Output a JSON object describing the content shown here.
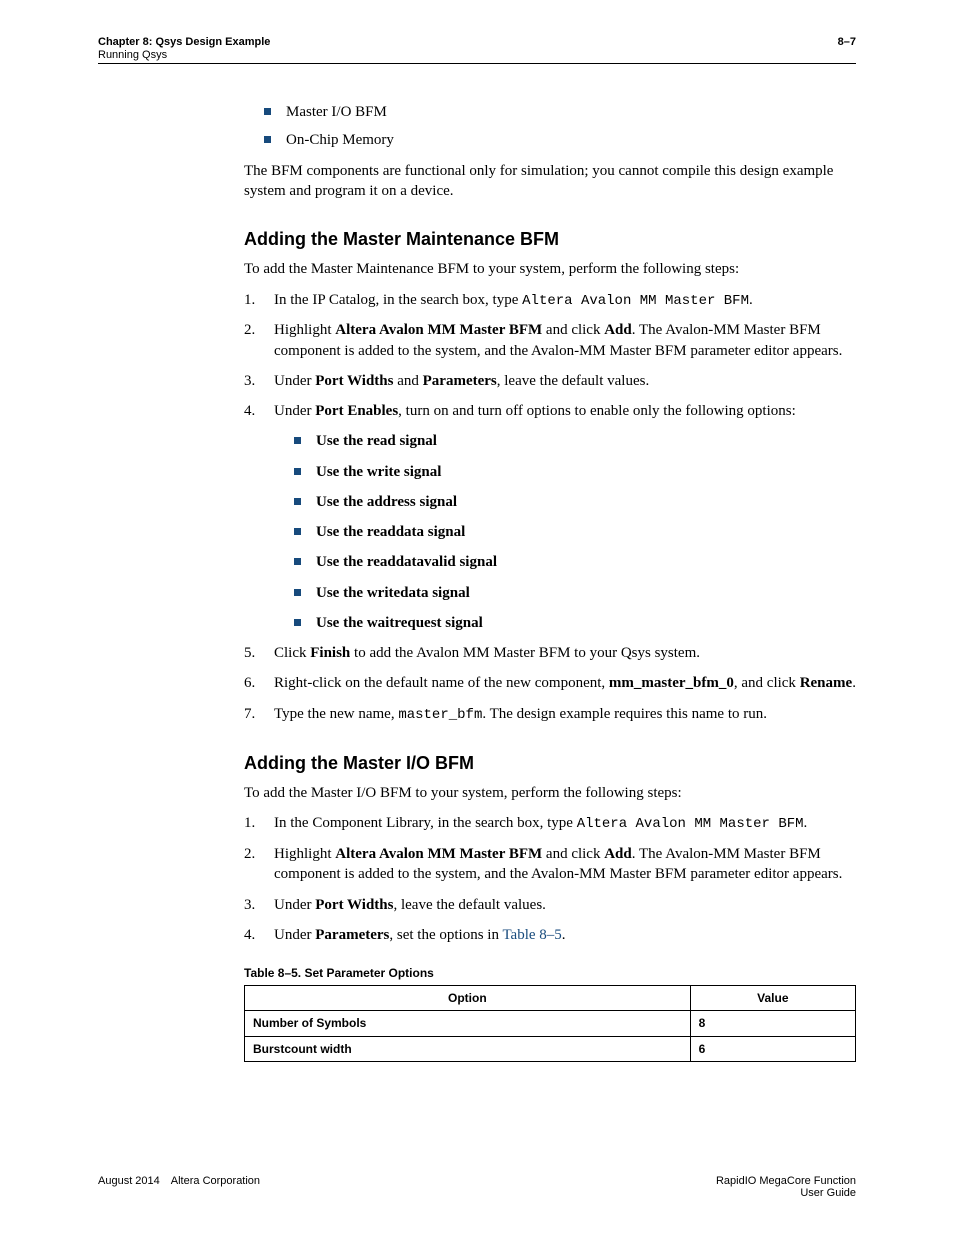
{
  "header": {
    "chapter": "Chapter 8: Qsys Design Example",
    "section": "Running Qsys",
    "pagenum": "8–7"
  },
  "intro": {
    "bullets": [
      "Master I/O BFM",
      "On-Chip Memory"
    ],
    "para": "The BFM components are functional only for simulation; you cannot compile this design example system and program it on a device."
  },
  "sec1": {
    "title": "Adding the Master Maintenance BFM",
    "lead": "To add the Master Maintenance BFM to your system, perform the following steps:",
    "step1_a": "In the IP Catalog, in the search box, type ",
    "step1_code": "Altera Avalon MM Master BFM",
    "step1_b": ".",
    "step2_a": "Highlight ",
    "step2_b": "Altera Avalon MM Master BFM",
    "step2_c": " and click ",
    "step2_d": "Add",
    "step2_e": ". The Avalon-MM Master BFM component is added to the system, and the Avalon-MM Master BFM parameter editor appears.",
    "step3_a": "Under ",
    "step3_b": "Port Widths",
    "step3_c": " and ",
    "step3_d": "Parameters",
    "step3_e": ", leave the default values.",
    "step4_a": "Under ",
    "step4_b": "Port Enables",
    "step4_c": ", turn on and turn off options to enable only the following options:",
    "step4_opts": [
      "Use the read signal",
      "Use the write signal",
      "Use the address signal",
      "Use the readdata signal",
      "Use the readdatavalid signal",
      "Use the writedata signal",
      "Use the waitrequest signal"
    ],
    "step5_a": "Click ",
    "step5_b": "Finish",
    "step5_c": " to add the Avalon MM Master BFM to your Qsys system.",
    "step6_a": "Right-click on the default name of the new component, ",
    "step6_b": "mm_master_bfm_0",
    "step6_c": ", and click ",
    "step6_d": "Rename",
    "step6_e": ".",
    "step7_a": "Type the new name, ",
    "step7_code": "master_bfm",
    "step7_b": ". The design example requires this name to run."
  },
  "sec2": {
    "title": "Adding the Master I/O BFM",
    "lead": "To add the Master I/O BFM to your system, perform the following steps:",
    "step1_a": "In the Component Library, in the search box, type ",
    "step1_code": "Altera Avalon MM Master BFM",
    "step1_b": ".",
    "step2_a": "Highlight ",
    "step2_b": "Altera Avalon MM Master BFM",
    "step2_c": " and click ",
    "step2_d": "Add",
    "step2_e": ". The Avalon-MM Master BFM component is added to the system, and the Avalon-MM Master BFM parameter editor appears.",
    "step3_a": "Under ",
    "step3_b": "Port Widths",
    "step3_c": ", leave the default values.",
    "step4_a": "Under ",
    "step4_b": "Parameters",
    "step4_c": ", set the options in ",
    "step4_xref": "Table 8–5",
    "step4_d": "."
  },
  "table": {
    "caption": "Table 8–5. Set Parameter Options",
    "col1": "Option",
    "col2": "Value",
    "rows": [
      {
        "opt": "Number of Symbols",
        "val": "8"
      },
      {
        "opt": "Burstcount width",
        "val": "6"
      }
    ]
  },
  "footer": {
    "left": "August 2014 Altera Corporation",
    "right1": "RapidIO MegaCore Function",
    "right2": "User Guide"
  }
}
